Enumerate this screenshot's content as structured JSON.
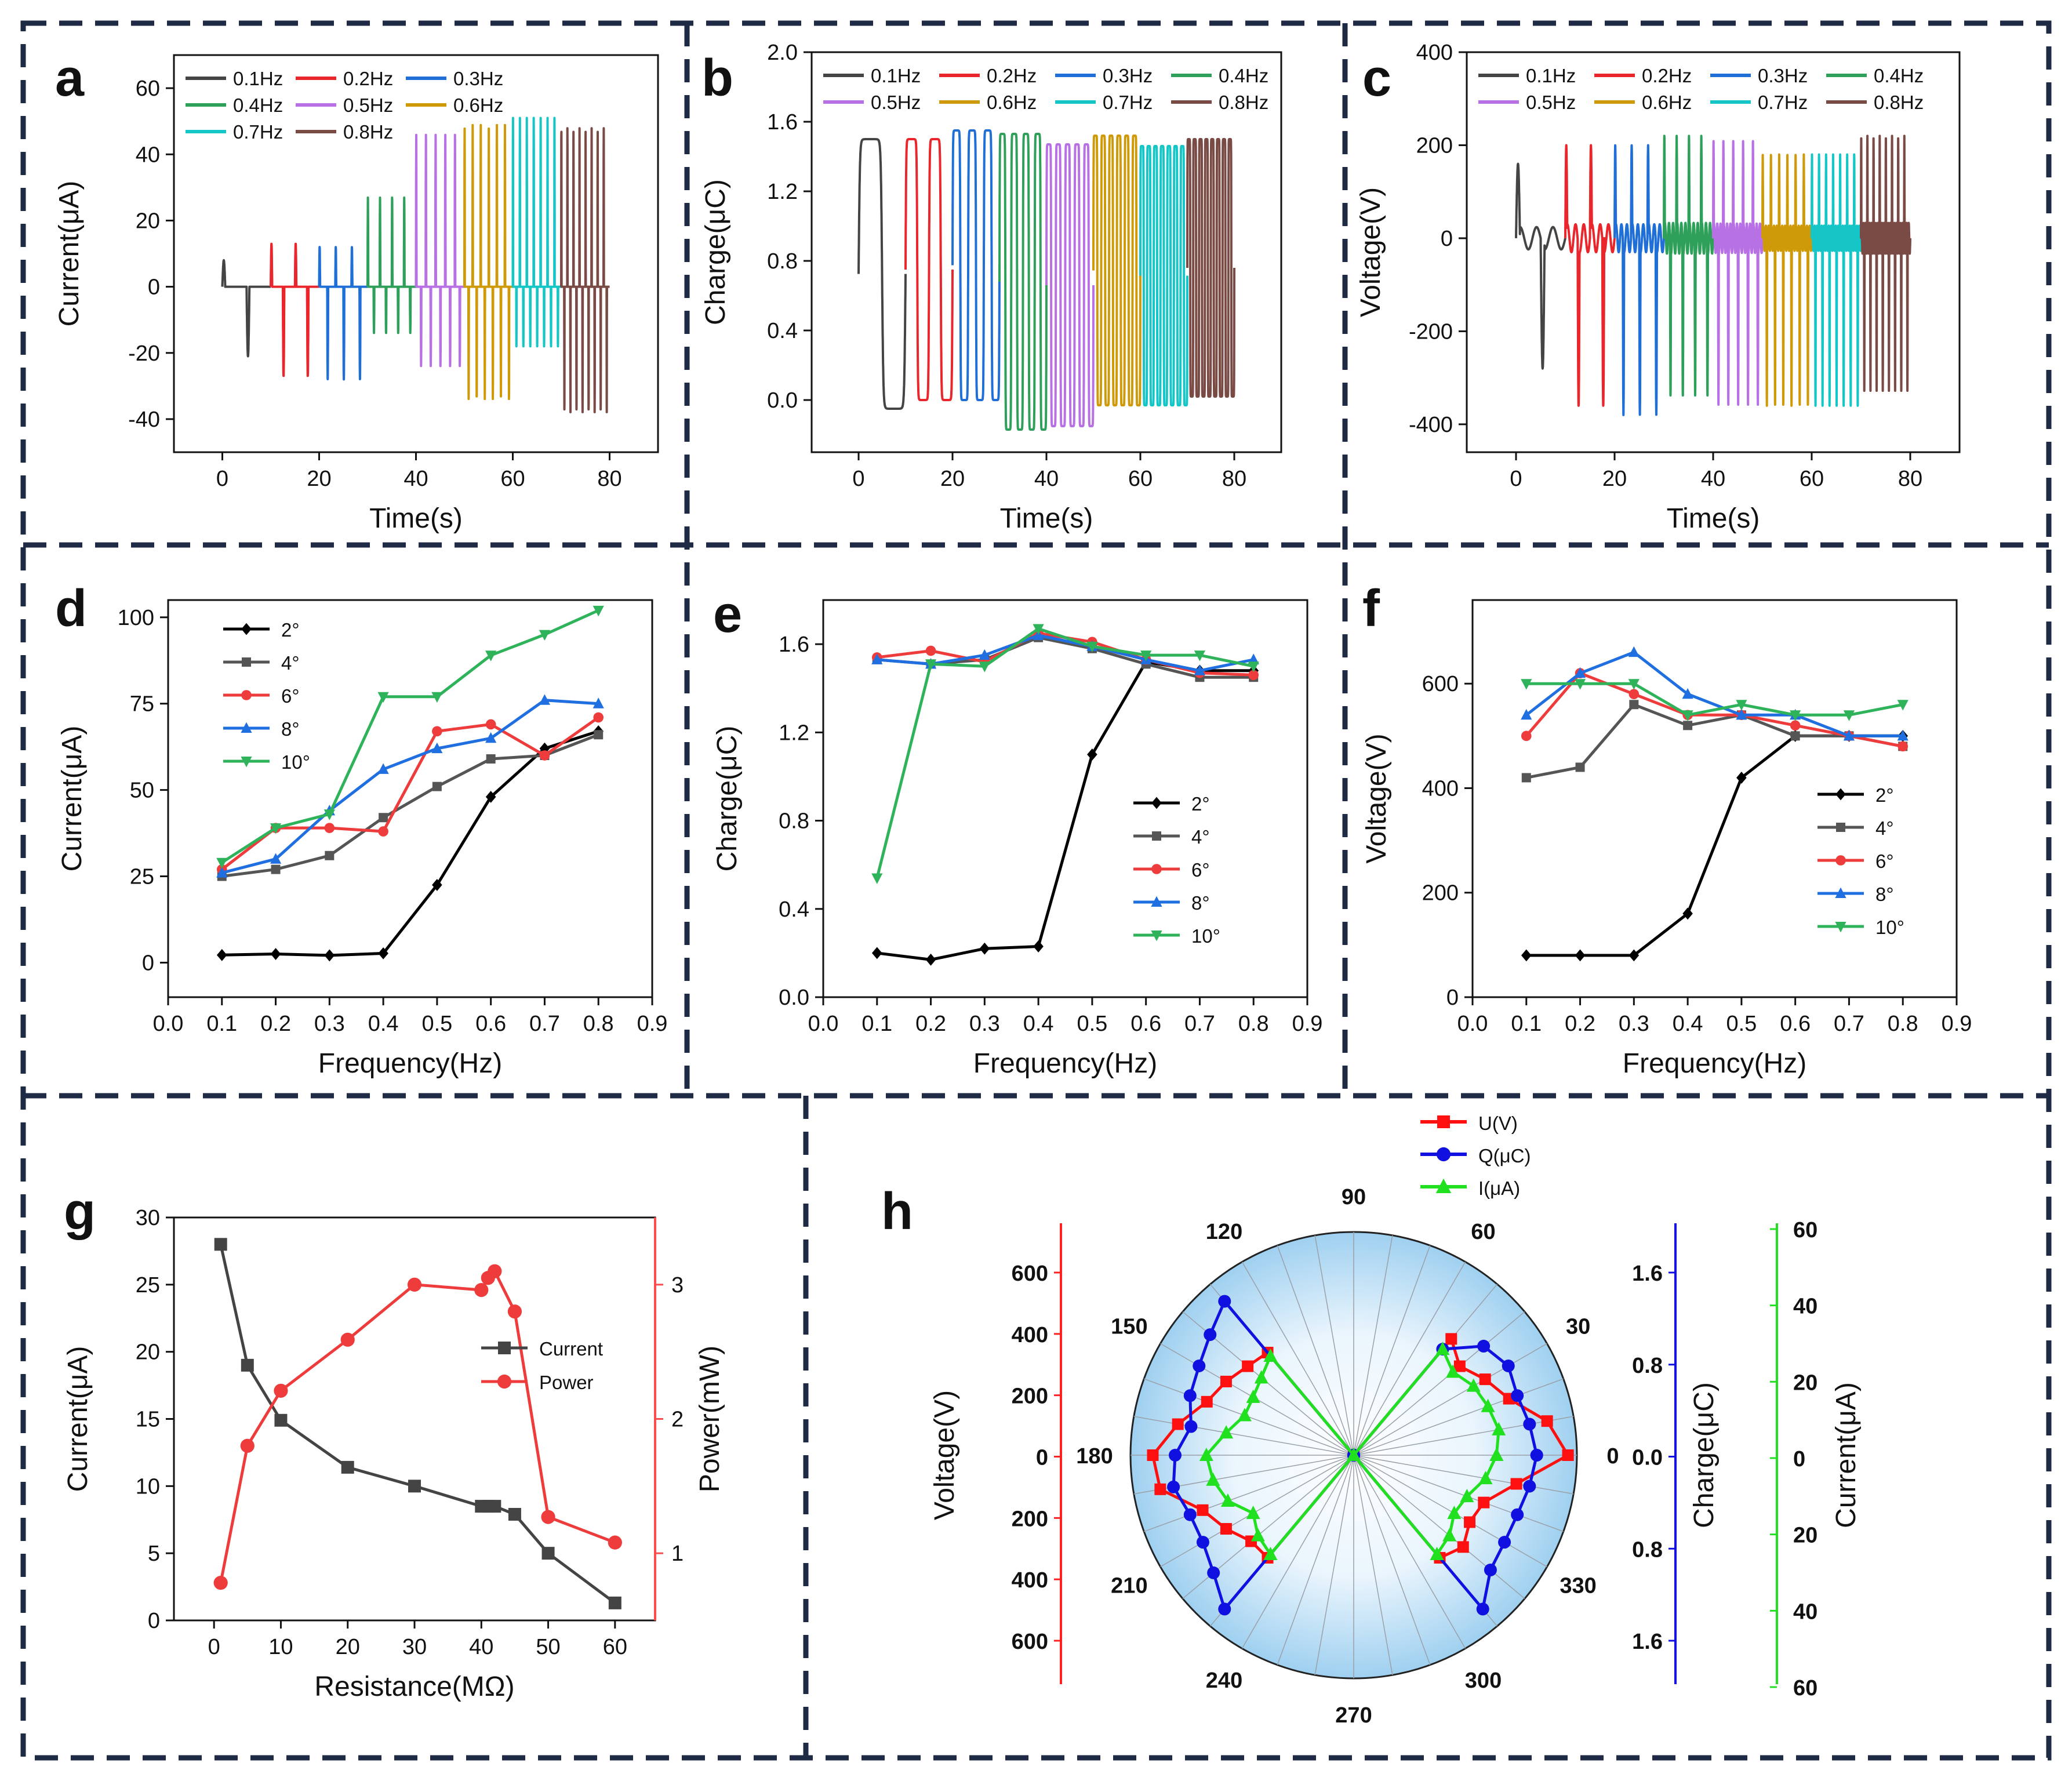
{
  "figure": {
    "panel_letters": [
      "a",
      "b",
      "c",
      "d",
      "e",
      "f",
      "g",
      "h"
    ]
  },
  "colors": {
    "0.1Hz": "#444444",
    "0.2Hz": "#e8262b",
    "0.3Hz": "#1f6fd6",
    "0.4Hz": "#2ea05a",
    "0.5Hz": "#b871e4",
    "0.6Hz": "#cf9a0a",
    "0.7Hz": "#16c6c6",
    "0.8Hz": "#7a4a45",
    "deg2": "#000000",
    "deg4": "#555555",
    "deg6": "#ee3b3b",
    "deg8": "#1f6fe0",
    "deg10": "#2fb35a",
    "U": "#ff1010",
    "Q": "#1010e0",
    "I": "#20e020"
  },
  "chart_data": [
    {
      "panel": "a",
      "type": "line",
      "xlabel": "Time(s)",
      "ylabel": "Current(μA)",
      "xlim": [
        -10,
        90
      ],
      "ylim": [
        -50,
        70
      ],
      "xticks": [
        0,
        20,
        40,
        60,
        80
      ],
      "yticks": [
        -40,
        -20,
        0,
        20,
        40,
        60
      ],
      "legend": [
        "0.1Hz",
        "0.2Hz",
        "0.3Hz",
        "0.4Hz",
        "0.5Hz",
        "0.6Hz",
        "0.7Hz",
        "0.8Hz"
      ],
      "series": [
        {
          "name": "0.1Hz",
          "t_start": 0,
          "t_end": 10,
          "freq": 0.1,
          "max": 8,
          "min": -21
        },
        {
          "name": "0.2Hz",
          "t_start": 10,
          "t_end": 20,
          "freq": 0.2,
          "max": 13,
          "min": -27
        },
        {
          "name": "0.3Hz",
          "t_start": 20,
          "t_end": 30,
          "freq": 0.3,
          "max": 12,
          "min": -28
        },
        {
          "name": "0.4Hz",
          "t_start": 30,
          "t_end": 40,
          "freq": 0.4,
          "max": 27,
          "min": -14
        },
        {
          "name": "0.5Hz",
          "t_start": 40,
          "t_end": 50,
          "freq": 0.5,
          "max": 46,
          "min": -24
        },
        {
          "name": "0.6Hz",
          "t_start": 50,
          "t_end": 60,
          "freq": 0.6,
          "max": 49,
          "min": -34
        },
        {
          "name": "0.7Hz",
          "t_start": 60,
          "t_end": 70,
          "freq": 0.7,
          "max": 51,
          "min": -18
        },
        {
          "name": "0.8Hz",
          "t_start": 70,
          "t_end": 80,
          "freq": 0.8,
          "max": 48,
          "min": -38
        }
      ]
    },
    {
      "panel": "b",
      "type": "line",
      "xlabel": "Time(s)",
      "ylabel": "Charge(μC)",
      "xlim": [
        -10,
        90
      ],
      "ylim": [
        -0.3,
        2.0
      ],
      "xticks": [
        0,
        20,
        40,
        60,
        80
      ],
      "yticks": [
        0.0,
        0.4,
        0.8,
        1.2,
        1.6,
        2.0
      ],
      "legend": [
        "0.1Hz",
        "0.2Hz",
        "0.3Hz",
        "0.4Hz",
        "0.5Hz",
        "0.6Hz",
        "0.7Hz",
        "0.8Hz"
      ],
      "series": [
        {
          "name": "0.1Hz",
          "t_start": 0,
          "t_end": 10,
          "freq": 0.1,
          "max": 1.5,
          "min": -0.05
        },
        {
          "name": "0.2Hz",
          "t_start": 10,
          "t_end": 20,
          "freq": 0.2,
          "max": 1.5,
          "min": 0.0
        },
        {
          "name": "0.3Hz",
          "t_start": 20,
          "t_end": 30,
          "freq": 0.3,
          "max": 1.55,
          "min": 0.0
        },
        {
          "name": "0.4Hz",
          "t_start": 30,
          "t_end": 40,
          "freq": 0.4,
          "max": 1.53,
          "min": -0.17
        },
        {
          "name": "0.5Hz",
          "t_start": 40,
          "t_end": 50,
          "freq": 0.5,
          "max": 1.47,
          "min": -0.15
        },
        {
          "name": "0.6Hz",
          "t_start": 50,
          "t_end": 60,
          "freq": 0.6,
          "max": 1.52,
          "min": -0.03
        },
        {
          "name": "0.7Hz",
          "t_start": 60,
          "t_end": 70,
          "freq": 0.7,
          "max": 1.46,
          "min": -0.03
        },
        {
          "name": "0.8Hz",
          "t_start": 70,
          "t_end": 80,
          "freq": 0.8,
          "max": 1.5,
          "min": 0.02
        }
      ]
    },
    {
      "panel": "c",
      "type": "line",
      "xlabel": "Time(s)",
      "ylabel": "Voltage(V)",
      "xlim": [
        -10,
        90
      ],
      "ylim": [
        -460,
        400
      ],
      "xticks": [
        0,
        20,
        40,
        60,
        80
      ],
      "yticks": [
        -400,
        -200,
        0,
        200,
        400
      ],
      "legend": [
        "0.1Hz",
        "0.2Hz",
        "0.3Hz",
        "0.4Hz",
        "0.5Hz",
        "0.6Hz",
        "0.7Hz",
        "0.8Hz"
      ],
      "series": [
        {
          "name": "0.1Hz",
          "t_start": 0,
          "t_end": 10,
          "freq": 0.1,
          "max": 160,
          "min": -280
        },
        {
          "name": "0.2Hz",
          "t_start": 10,
          "t_end": 20,
          "freq": 0.2,
          "max": 200,
          "min": -360
        },
        {
          "name": "0.3Hz",
          "t_start": 20,
          "t_end": 30,
          "freq": 0.3,
          "max": 200,
          "min": -380
        },
        {
          "name": "0.4Hz",
          "t_start": 30,
          "t_end": 40,
          "freq": 0.4,
          "max": 220,
          "min": -340
        },
        {
          "name": "0.5Hz",
          "t_start": 40,
          "t_end": 50,
          "freq": 0.5,
          "max": 210,
          "min": -360
        },
        {
          "name": "0.6Hz",
          "t_start": 50,
          "t_end": 60,
          "freq": 0.6,
          "max": 180,
          "min": -360
        },
        {
          "name": "0.7Hz",
          "t_start": 60,
          "t_end": 70,
          "freq": 0.7,
          "max": 180,
          "min": -360
        },
        {
          "name": "0.8Hz",
          "t_start": 70,
          "t_end": 80,
          "freq": 0.8,
          "max": 220,
          "min": -330
        }
      ]
    },
    {
      "panel": "d",
      "type": "line",
      "xlabel": "Frequency(Hz)",
      "ylabel": "Current(μA)",
      "xlim": [
        0,
        0.9
      ],
      "ylim": [
        -10,
        105
      ],
      "xticks": [
        0.0,
        0.1,
        0.2,
        0.3,
        0.4,
        0.5,
        0.6,
        0.7,
        0.8,
        0.9
      ],
      "yticks": [
        0,
        25,
        50,
        75,
        100
      ],
      "x": [
        0.1,
        0.2,
        0.3,
        0.4,
        0.5,
        0.6,
        0.7,
        0.8
      ],
      "series": [
        {
          "name": "2°",
          "marker": "diamond",
          "values": [
            2.2,
            2.5,
            2.1,
            2.7,
            22.5,
            48,
            62,
            67
          ]
        },
        {
          "name": "4°",
          "marker": "square",
          "values": [
            25,
            27,
            31,
            42,
            51,
            59,
            60,
            66
          ]
        },
        {
          "name": "6°",
          "marker": "circle",
          "values": [
            27,
            39,
            39,
            38,
            67,
            69,
            60,
            71
          ]
        },
        {
          "name": "8°",
          "marker": "triangle-up",
          "values": [
            26,
            30,
            44,
            56,
            62,
            65,
            76,
            75
          ]
        },
        {
          "name": "10°",
          "marker": "triangle-down",
          "values": [
            29,
            39,
            43,
            77,
            77,
            89,
            95,
            102
          ]
        }
      ]
    },
    {
      "panel": "e",
      "type": "line",
      "xlabel": "Frequency(Hz)",
      "ylabel": "Charge(μC)",
      "xlim": [
        0,
        0.9
      ],
      "ylim": [
        0,
        1.8
      ],
      "xticks": [
        0.0,
        0.1,
        0.2,
        0.3,
        0.4,
        0.5,
        0.6,
        0.7,
        0.8,
        0.9
      ],
      "yticks": [
        0.0,
        0.4,
        0.8,
        1.2,
        1.6
      ],
      "x": [
        0.1,
        0.2,
        0.3,
        0.4,
        0.5,
        0.6,
        0.7,
        0.8
      ],
      "series": [
        {
          "name": "2°",
          "marker": "diamond",
          "values": [
            0.2,
            0.17,
            0.22,
            0.23,
            1.1,
            1.52,
            1.48,
            1.48
          ]
        },
        {
          "name": "4°",
          "marker": "square",
          "values": [
            1.53,
            1.51,
            1.53,
            1.63,
            1.58,
            1.51,
            1.45,
            1.45
          ]
        },
        {
          "name": "6°",
          "marker": "circle",
          "values": [
            1.54,
            1.57,
            1.52,
            1.65,
            1.61,
            1.53,
            1.47,
            1.46
          ]
        },
        {
          "name": "8°",
          "marker": "triangle-up",
          "values": [
            1.53,
            1.51,
            1.55,
            1.64,
            1.59,
            1.53,
            1.48,
            1.53
          ]
        },
        {
          "name": "10°",
          "marker": "triangle-down",
          "values": [
            0.54,
            1.51,
            1.5,
            1.67,
            1.59,
            1.55,
            1.55,
            1.5
          ]
        }
      ]
    },
    {
      "panel": "f",
      "type": "line",
      "xlabel": "Frequency(Hz)",
      "ylabel": "Voltage(V)",
      "xlim": [
        0,
        0.9
      ],
      "ylim": [
        0,
        760
      ],
      "xticks": [
        0.0,
        0.1,
        0.2,
        0.3,
        0.4,
        0.5,
        0.6,
        0.7,
        0.8,
        0.9
      ],
      "yticks": [
        0,
        200,
        400,
        600
      ],
      "x": [
        0.1,
        0.2,
        0.3,
        0.4,
        0.5,
        0.6,
        0.7,
        0.8
      ],
      "series": [
        {
          "name": "2°",
          "marker": "diamond",
          "values": [
            80,
            80,
            80,
            160,
            420,
            500,
            500,
            500
          ]
        },
        {
          "name": "4°",
          "marker": "square",
          "values": [
            420,
            440,
            560,
            520,
            540,
            500,
            500,
            480
          ]
        },
        {
          "name": "6°",
          "marker": "circle",
          "values": [
            500,
            620,
            580,
            540,
            540,
            520,
            500,
            480
          ]
        },
        {
          "name": "8°",
          "marker": "triangle-up",
          "values": [
            540,
            620,
            660,
            580,
            540,
            540,
            500,
            500
          ]
        },
        {
          "name": "10°",
          "marker": "triangle-down",
          "values": [
            600,
            600,
            600,
            540,
            560,
            540,
            540,
            560
          ]
        }
      ]
    },
    {
      "panel": "g",
      "type": "line",
      "xlabel": "Resistance(MΩ)",
      "ylabel": "Current(μA)",
      "ylabel_right": "Power(mW)",
      "xlim": [
        -6,
        66
      ],
      "ylim": [
        0,
        30
      ],
      "ylim_right": [
        0.5,
        3.5
      ],
      "xticks": [
        0,
        10,
        20,
        30,
        40,
        50,
        60
      ],
      "yticks": [
        0,
        5,
        10,
        15,
        20,
        25,
        30
      ],
      "yticks_right": [
        1,
        2,
        3
      ],
      "legend": [
        "Current",
        "Power"
      ],
      "series": [
        {
          "name": "Current",
          "axis": "left",
          "marker": "square",
          "x": [
            1,
            5,
            10,
            20,
            30,
            40,
            41,
            42,
            45,
            50,
            60
          ],
          "values": [
            28,
            19,
            14.9,
            11.4,
            10,
            8.5,
            8.5,
            8.5,
            7.9,
            5,
            1.3
          ]
        },
        {
          "name": "Power",
          "axis": "right",
          "marker": "circle",
          "x": [
            1,
            5,
            10,
            20,
            30,
            40,
            41,
            42,
            45,
            50,
            60
          ],
          "values": [
            0.78,
            1.8,
            2.21,
            2.59,
            3,
            2.96,
            3.05,
            3.1,
            2.8,
            1.27,
            1.08
          ]
        }
      ]
    },
    {
      "panel": "h",
      "type": "polar",
      "angle_labels": [
        "0",
        "30",
        "60",
        "90",
        "120",
        "150",
        "180",
        "210",
        "240",
        "270",
        "300",
        "330"
      ],
      "left_axis": {
        "title": "Voltage(V)",
        "ticks": [
          "600",
          "400",
          "200",
          "0",
          "200",
          "400",
          "600"
        ]
      },
      "right_axis_1": {
        "title": "Charge(μC)",
        "ticks": [
          "1.6",
          "0.8",
          "0.0",
          "0.8",
          "1.6"
        ]
      },
      "right_axis_2": {
        "title": "Current(μA)",
        "ticks": [
          "60",
          "40",
          "20",
          "0",
          "20",
          "40",
          "60"
        ]
      },
      "legend": [
        "U(V)",
        "Q(μC)",
        "I(μA)"
      ],
      "angles_deg": [
        0,
        10,
        20,
        30,
        40,
        50,
        60,
        90,
        120,
        130,
        140,
        150,
        160,
        170,
        180,
        190,
        200,
        210,
        220,
        230,
        240,
        270,
        300,
        310,
        320,
        330,
        340,
        350,
        360
      ],
      "series": [
        {
          "name": "U(V)",
          "marker": "square",
          "values": [
            0.96,
            0.88,
            0.74,
            0.68,
            0.62,
            0.68,
            0.0,
            0.0,
            0.0,
            0.6,
            0.62,
            0.66,
            0.7,
            0.8,
            0.9,
            0.88,
            0.72,
            0.66,
            0.6,
            0.6,
            0.0,
            0.0,
            0.0,
            0.6,
            0.64,
            0.6,
            0.62,
            0.74,
            0.96
          ]
        },
        {
          "name": "Q(μC)",
          "marker": "circle",
          "values": [
            0.82,
            0.8,
            0.78,
            0.8,
            0.76,
            0.62,
            0.0,
            0.0,
            0.0,
            0.9,
            0.84,
            0.8,
            0.78,
            0.74,
            0.8,
            0.82,
            0.78,
            0.78,
            0.82,
            0.9,
            0.0,
            0.0,
            0.0,
            0.9,
            0.8,
            0.78,
            0.78,
            0.8,
            0.82
          ]
        },
        {
          "name": "I(μA)",
          "marker": "triangle-up",
          "values": [
            0.64,
            0.66,
            0.64,
            0.62,
            0.58,
            0.62,
            0.0,
            0.0,
            0.0,
            0.58,
            0.54,
            0.52,
            0.52,
            0.58,
            0.66,
            0.64,
            0.6,
            0.52,
            0.56,
            0.58,
            0.0,
            0.0,
            0.0,
            0.58,
            0.56,
            0.52,
            0.54,
            0.6,
            0.64
          ]
        }
      ]
    }
  ]
}
